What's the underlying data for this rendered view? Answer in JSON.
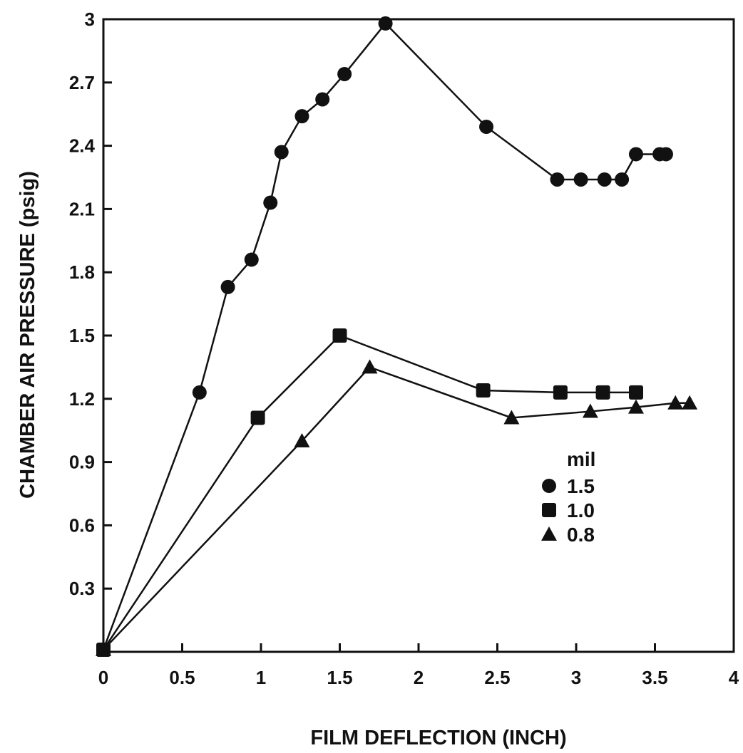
{
  "chart_data": {
    "type": "line",
    "title": "",
    "xlabel": "FILM DEFLECTION (INCH)",
    "ylabel": "CHAMBER AIR PRESSURE (psig)",
    "xlim": [
      0,
      4
    ],
    "ylim": [
      0,
      3
    ],
    "x_ticks": [
      "0",
      "0.5",
      "1",
      "1.5",
      "2",
      "2.5",
      "3",
      "3.5",
      "4"
    ],
    "y_ticks": [
      "0.3",
      "0.6",
      "0.9",
      "1.2",
      "1.5",
      "1.8",
      "2.1",
      "2.4",
      "2.7",
      "3"
    ],
    "grid": false,
    "legend": {
      "title": "mil",
      "placement": "right-middle"
    },
    "series": [
      {
        "name": "1.5",
        "marker": "circle",
        "x": [
          0,
          0.61,
          0.79,
          0.94,
          1.06,
          1.13,
          1.26,
          1.39,
          1.53,
          1.79,
          2.43,
          2.88,
          3.03,
          3.18,
          3.29,
          3.38,
          3.53,
          3.57
        ],
        "y": [
          0.01,
          1.23,
          1.73,
          1.86,
          2.13,
          2.37,
          2.54,
          2.62,
          2.74,
          2.98,
          2.49,
          2.24,
          2.24,
          2.24,
          2.24,
          2.36,
          2.36,
          2.36
        ]
      },
      {
        "name": "1.0",
        "marker": "square",
        "x": [
          0,
          0.98,
          1.5,
          2.41,
          2.9,
          3.17,
          3.38
        ],
        "y": [
          0.01,
          1.11,
          1.5,
          1.24,
          1.23,
          1.23,
          1.23
        ]
      },
      {
        "name": "0.8",
        "marker": "triangle",
        "x": [
          0,
          1.26,
          1.69,
          2.59,
          3.09,
          3.38,
          3.63,
          3.72
        ],
        "y": [
          0.01,
          1.0,
          1.35,
          1.11,
          1.14,
          1.16,
          1.18,
          1.18
        ]
      }
    ]
  }
}
